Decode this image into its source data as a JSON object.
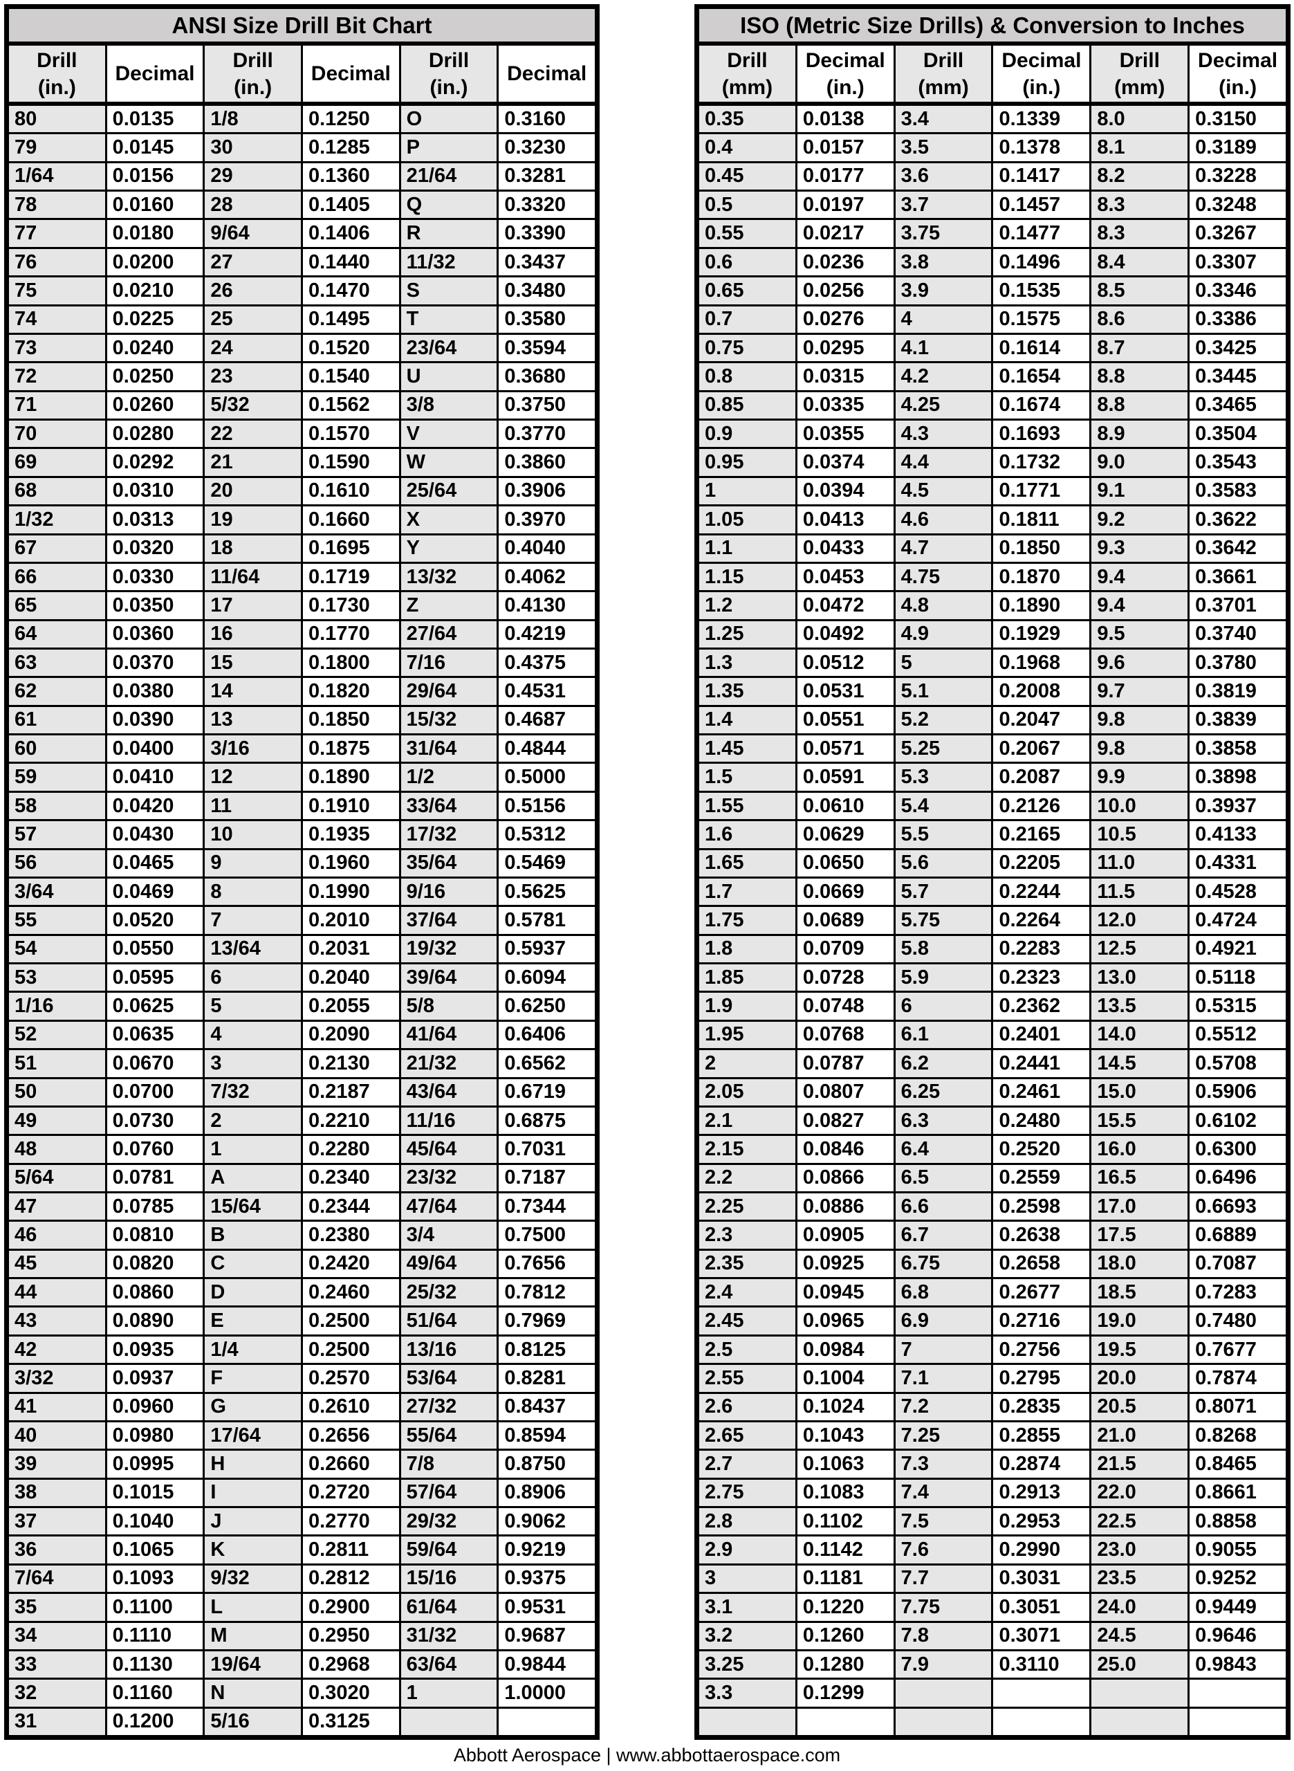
{
  "colors": {
    "title_bg": "#d0cece",
    "shaded_cell_bg": "#e7e6e6",
    "plain_cell_bg": "#ffffff",
    "grid_border": "#000000",
    "text": "#000000"
  },
  "footer": {
    "text": "Abbott Aerospace | www.abbottaerospace.com"
  },
  "tables": [
    {
      "id": "ansi",
      "title": "ANSI Size Drill Bit Chart",
      "headers": [
        [
          "Drill",
          "(in.)"
        ],
        [
          "Decimal"
        ],
        [
          "Drill",
          "(in.)"
        ],
        [
          "Decimal"
        ],
        [
          "Drill",
          "(in.)"
        ],
        [
          "Decimal"
        ]
      ],
      "rows": [
        [
          "80",
          "0.0135",
          "1/8",
          "0.1250",
          "O",
          "0.3160"
        ],
        [
          "79",
          "0.0145",
          "30",
          "0.1285",
          "P",
          "0.3230"
        ],
        [
          "1/64",
          "0.0156",
          "29",
          "0.1360",
          "21/64",
          "0.3281"
        ],
        [
          "78",
          "0.0160",
          "28",
          "0.1405",
          "Q",
          "0.3320"
        ],
        [
          "77",
          "0.0180",
          "9/64",
          "0.1406",
          "R",
          "0.3390"
        ],
        [
          "76",
          "0.0200",
          "27",
          "0.1440",
          "11/32",
          "0.3437"
        ],
        [
          "75",
          "0.0210",
          "26",
          "0.1470",
          "S",
          "0.3480"
        ],
        [
          "74",
          "0.0225",
          "25",
          "0.1495",
          "T",
          "0.3580"
        ],
        [
          "73",
          "0.0240",
          "24",
          "0.1520",
          "23/64",
          "0.3594"
        ],
        [
          "72",
          "0.0250",
          "23",
          "0.1540",
          "U",
          "0.3680"
        ],
        [
          "71",
          "0.0260",
          "5/32",
          "0.1562",
          "3/8",
          "0.3750"
        ],
        [
          "70",
          "0.0280",
          "22",
          "0.1570",
          "V",
          "0.3770"
        ],
        [
          "69",
          "0.0292",
          "21",
          "0.1590",
          "W",
          "0.3860"
        ],
        [
          "68",
          "0.0310",
          "20",
          "0.1610",
          "25/64",
          "0.3906"
        ],
        [
          "1/32",
          "0.0313",
          "19",
          "0.1660",
          "X",
          "0.3970"
        ],
        [
          "67",
          "0.0320",
          "18",
          "0.1695",
          "Y",
          "0.4040"
        ],
        [
          "66",
          "0.0330",
          "11/64",
          "0.1719",
          "13/32",
          "0.4062"
        ],
        [
          "65",
          "0.0350",
          "17",
          "0.1730",
          "Z",
          "0.4130"
        ],
        [
          "64",
          "0.0360",
          "16",
          "0.1770",
          "27/64",
          "0.4219"
        ],
        [
          "63",
          "0.0370",
          "15",
          "0.1800",
          "7/16",
          "0.4375"
        ],
        [
          "62",
          "0.0380",
          "14",
          "0.1820",
          "29/64",
          "0.4531"
        ],
        [
          "61",
          "0.0390",
          "13",
          "0.1850",
          "15/32",
          "0.4687"
        ],
        [
          "60",
          "0.0400",
          "3/16",
          "0.1875",
          "31/64",
          "0.4844"
        ],
        [
          "59",
          "0.0410",
          "12",
          "0.1890",
          "1/2",
          "0.5000"
        ],
        [
          "58",
          "0.0420",
          "11",
          "0.1910",
          "33/64",
          "0.5156"
        ],
        [
          "57",
          "0.0430",
          "10",
          "0.1935",
          "17/32",
          "0.5312"
        ],
        [
          "56",
          "0.0465",
          "9",
          "0.1960",
          "35/64",
          "0.5469"
        ],
        [
          "3/64",
          "0.0469",
          "8",
          "0.1990",
          "9/16",
          "0.5625"
        ],
        [
          "55",
          "0.0520",
          "7",
          "0.2010",
          "37/64",
          "0.5781"
        ],
        [
          "54",
          "0.0550",
          "13/64",
          "0.2031",
          "19/32",
          "0.5937"
        ],
        [
          "53",
          "0.0595",
          "6",
          "0.2040",
          "39/64",
          "0.6094"
        ],
        [
          "1/16",
          "0.0625",
          "5",
          "0.2055",
          "5/8",
          "0.6250"
        ],
        [
          "52",
          "0.0635",
          "4",
          "0.2090",
          "41/64",
          "0.6406"
        ],
        [
          "51",
          "0.0670",
          "3",
          "0.2130",
          "21/32",
          "0.6562"
        ],
        [
          "50",
          "0.0700",
          "7/32",
          "0.2187",
          "43/64",
          "0.6719"
        ],
        [
          "49",
          "0.0730",
          "2",
          "0.2210",
          "11/16",
          "0.6875"
        ],
        [
          "48",
          "0.0760",
          "1",
          "0.2280",
          "45/64",
          "0.7031"
        ],
        [
          "5/64",
          "0.0781",
          "A",
          "0.2340",
          "23/32",
          "0.7187"
        ],
        [
          "47",
          "0.0785",
          "15/64",
          "0.2344",
          "47/64",
          "0.7344"
        ],
        [
          "46",
          "0.0810",
          "B",
          "0.2380",
          "3/4",
          "0.7500"
        ],
        [
          "45",
          "0.0820",
          "C",
          "0.2420",
          "49/64",
          "0.7656"
        ],
        [
          "44",
          "0.0860",
          "D",
          "0.2460",
          "25/32",
          "0.7812"
        ],
        [
          "43",
          "0.0890",
          "E",
          "0.2500",
          "51/64",
          "0.7969"
        ],
        [
          "42",
          "0.0935",
          "1/4",
          "0.2500",
          "13/16",
          "0.8125"
        ],
        [
          "3/32",
          "0.0937",
          "F",
          "0.2570",
          "53/64",
          "0.8281"
        ],
        [
          "41",
          "0.0960",
          "G",
          "0.2610",
          "27/32",
          "0.8437"
        ],
        [
          "40",
          "0.0980",
          "17/64",
          "0.2656",
          "55/64",
          "0.8594"
        ],
        [
          "39",
          "0.0995",
          "H",
          "0.2660",
          "7/8",
          "0.8750"
        ],
        [
          "38",
          "0.1015",
          "I",
          "0.2720",
          "57/64",
          "0.8906"
        ],
        [
          "37",
          "0.1040",
          "J",
          "0.2770",
          "29/32",
          "0.9062"
        ],
        [
          "36",
          "0.1065",
          "K",
          "0.2811",
          "59/64",
          "0.9219"
        ],
        [
          "7/64",
          "0.1093",
          "9/32",
          "0.2812",
          "15/16",
          "0.9375"
        ],
        [
          "35",
          "0.1100",
          "L",
          "0.2900",
          "61/64",
          "0.9531"
        ],
        [
          "34",
          "0.1110",
          "M",
          "0.2950",
          "31/32",
          "0.9687"
        ],
        [
          "33",
          "0.1130",
          "19/64",
          "0.2968",
          "63/64",
          "0.9844"
        ],
        [
          "32",
          "0.1160",
          "N",
          "0.3020",
          "1",
          "1.0000"
        ],
        [
          "31",
          "0.1200",
          "5/16",
          "0.3125",
          "",
          ""
        ]
      ]
    },
    {
      "id": "iso",
      "title": "ISO (Metric Size Drills) & Conversion to Inches",
      "headers": [
        [
          "Drill",
          "(mm)"
        ],
        [
          "Decimal",
          "(in.)"
        ],
        [
          "Drill",
          "(mm)"
        ],
        [
          "Decimal",
          "(in.)"
        ],
        [
          "Drill",
          "(mm)"
        ],
        [
          "Decimal",
          "(in.)"
        ]
      ],
      "rows": [
        [
          "0.35",
          "0.0138",
          "3.4",
          "0.1339",
          "8.0",
          "0.3150"
        ],
        [
          "0.4",
          "0.0157",
          "3.5",
          "0.1378",
          "8.1",
          "0.3189"
        ],
        [
          "0.45",
          "0.0177",
          "3.6",
          "0.1417",
          "8.2",
          "0.3228"
        ],
        [
          "0.5",
          "0.0197",
          "3.7",
          "0.1457",
          "8.3",
          "0.3248"
        ],
        [
          "0.55",
          "0.0217",
          "3.75",
          "0.1477",
          "8.3",
          "0.3267"
        ],
        [
          "0.6",
          "0.0236",
          "3.8",
          "0.1496",
          "8.4",
          "0.3307"
        ],
        [
          "0.65",
          "0.0256",
          "3.9",
          "0.1535",
          "8.5",
          "0.3346"
        ],
        [
          "0.7",
          "0.0276",
          "4",
          "0.1575",
          "8.6",
          "0.3386"
        ],
        [
          "0.75",
          "0.0295",
          "4.1",
          "0.1614",
          "8.7",
          "0.3425"
        ],
        [
          "0.8",
          "0.0315",
          "4.2",
          "0.1654",
          "8.8",
          "0.3445"
        ],
        [
          "0.85",
          "0.0335",
          "4.25",
          "0.1674",
          "8.8",
          "0.3465"
        ],
        [
          "0.9",
          "0.0355",
          "4.3",
          "0.1693",
          "8.9",
          "0.3504"
        ],
        [
          "0.95",
          "0.0374",
          "4.4",
          "0.1732",
          "9.0",
          "0.3543"
        ],
        [
          "1",
          "0.0394",
          "4.5",
          "0.1771",
          "9.1",
          "0.3583"
        ],
        [
          "1.05",
          "0.0413",
          "4.6",
          "0.1811",
          "9.2",
          "0.3622"
        ],
        [
          "1.1",
          "0.0433",
          "4.7",
          "0.1850",
          "9.3",
          "0.3642"
        ],
        [
          "1.15",
          "0.0453",
          "4.75",
          "0.1870",
          "9.4",
          "0.3661"
        ],
        [
          "1.2",
          "0.0472",
          "4.8",
          "0.1890",
          "9.4",
          "0.3701"
        ],
        [
          "1.25",
          "0.0492",
          "4.9",
          "0.1929",
          "9.5",
          "0.3740"
        ],
        [
          "1.3",
          "0.0512",
          "5",
          "0.1968",
          "9.6",
          "0.3780"
        ],
        [
          "1.35",
          "0.0531",
          "5.1",
          "0.2008",
          "9.7",
          "0.3819"
        ],
        [
          "1.4",
          "0.0551",
          "5.2",
          "0.2047",
          "9.8",
          "0.3839"
        ],
        [
          "1.45",
          "0.0571",
          "5.25",
          "0.2067",
          "9.8",
          "0.3858"
        ],
        [
          "1.5",
          "0.0591",
          "5.3",
          "0.2087",
          "9.9",
          "0.3898"
        ],
        [
          "1.55",
          "0.0610",
          "5.4",
          "0.2126",
          "10.0",
          "0.3937"
        ],
        [
          "1.6",
          "0.0629",
          "5.5",
          "0.2165",
          "10.5",
          "0.4133"
        ],
        [
          "1.65",
          "0.0650",
          "5.6",
          "0.2205",
          "11.0",
          "0.4331"
        ],
        [
          "1.7",
          "0.0669",
          "5.7",
          "0.2244",
          "11.5",
          "0.4528"
        ],
        [
          "1.75",
          "0.0689",
          "5.75",
          "0.2264",
          "12.0",
          "0.4724"
        ],
        [
          "1.8",
          "0.0709",
          "5.8",
          "0.2283",
          "12.5",
          "0.4921"
        ],
        [
          "1.85",
          "0.0728",
          "5.9",
          "0.2323",
          "13.0",
          "0.5118"
        ],
        [
          "1.9",
          "0.0748",
          "6",
          "0.2362",
          "13.5",
          "0.5315"
        ],
        [
          "1.95",
          "0.0768",
          "6.1",
          "0.2401",
          "14.0",
          "0.5512"
        ],
        [
          "2",
          "0.0787",
          "6.2",
          "0.2441",
          "14.5",
          "0.5708"
        ],
        [
          "2.05",
          "0.0807",
          "6.25",
          "0.2461",
          "15.0",
          "0.5906"
        ],
        [
          "2.1",
          "0.0827",
          "6.3",
          "0.2480",
          "15.5",
          "0.6102"
        ],
        [
          "2.15",
          "0.0846",
          "6.4",
          "0.2520",
          "16.0",
          "0.6300"
        ],
        [
          "2.2",
          "0.0866",
          "6.5",
          "0.2559",
          "16.5",
          "0.6496"
        ],
        [
          "2.25",
          "0.0886",
          "6.6",
          "0.2598",
          "17.0",
          "0.6693"
        ],
        [
          "2.3",
          "0.0905",
          "6.7",
          "0.2638",
          "17.5",
          "0.6889"
        ],
        [
          "2.35",
          "0.0925",
          "6.75",
          "0.2658",
          "18.0",
          "0.7087"
        ],
        [
          "2.4",
          "0.0945",
          "6.8",
          "0.2677",
          "18.5",
          "0.7283"
        ],
        [
          "2.45",
          "0.0965",
          "6.9",
          "0.2716",
          "19.0",
          "0.7480"
        ],
        [
          "2.5",
          "0.0984",
          "7",
          "0.2756",
          "19.5",
          "0.7677"
        ],
        [
          "2.55",
          "0.1004",
          "7.1",
          "0.2795",
          "20.0",
          "0.7874"
        ],
        [
          "2.6",
          "0.1024",
          "7.2",
          "0.2835",
          "20.5",
          "0.8071"
        ],
        [
          "2.65",
          "0.1043",
          "7.25",
          "0.2855",
          "21.0",
          "0.8268"
        ],
        [
          "2.7",
          "0.1063",
          "7.3",
          "0.2874",
          "21.5",
          "0.8465"
        ],
        [
          "2.75",
          "0.1083",
          "7.4",
          "0.2913",
          "22.0",
          "0.8661"
        ],
        [
          "2.8",
          "0.1102",
          "7.5",
          "0.2953",
          "22.5",
          "0.8858"
        ],
        [
          "2.9",
          "0.1142",
          "7.6",
          "0.2990",
          "23.0",
          "0.9055"
        ],
        [
          "3",
          "0.1181",
          "7.7",
          "0.3031",
          "23.5",
          "0.9252"
        ],
        [
          "3.1",
          "0.1220",
          "7.75",
          "0.3051",
          "24.0",
          "0.9449"
        ],
        [
          "3.2",
          "0.1260",
          "7.8",
          "0.3071",
          "24.5",
          "0.9646"
        ],
        [
          "3.25",
          "0.1280",
          "7.9",
          "0.3110",
          "25.0",
          "0.9843"
        ],
        [
          "3.3",
          "0.1299",
          "",
          "",
          "",
          ""
        ],
        [
          "",
          "",
          "",
          "",
          "",
          ""
        ]
      ]
    }
  ]
}
